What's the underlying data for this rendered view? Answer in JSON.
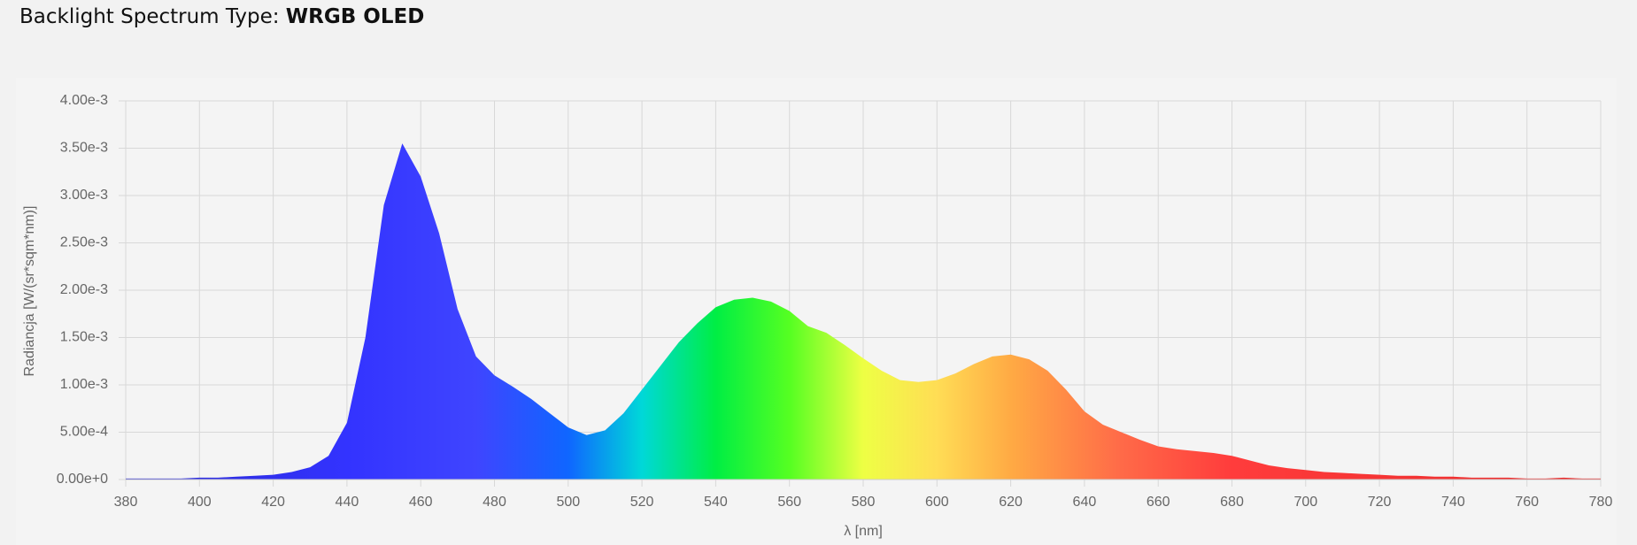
{
  "chart_data": {
    "type": "area",
    "title": "Backlight Spectrum Type:",
    "title_emphasis": "WRGB OLED",
    "x_label": "λ [nm]",
    "y_label": "Radiancja [W/(sr*sqm*nm)]",
    "x": [
      380,
      385,
      390,
      395,
      400,
      405,
      410,
      415,
      420,
      425,
      430,
      435,
      440,
      445,
      450,
      455,
      460,
      465,
      470,
      475,
      480,
      485,
      490,
      495,
      500,
      505,
      510,
      515,
      520,
      525,
      530,
      535,
      540,
      545,
      550,
      555,
      560,
      565,
      570,
      575,
      580,
      585,
      590,
      595,
      600,
      605,
      610,
      615,
      620,
      625,
      630,
      635,
      640,
      645,
      650,
      655,
      660,
      665,
      670,
      675,
      680,
      685,
      690,
      695,
      700,
      705,
      710,
      715,
      720,
      725,
      730,
      735,
      740,
      745,
      750,
      755,
      760,
      765,
      770,
      775,
      780
    ],
    "values": [
      1e-05,
      1e-05,
      1e-05,
      1e-05,
      2e-05,
      2e-05,
      3e-05,
      4e-05,
      5e-05,
      8e-05,
      0.00013,
      0.00025,
      0.0006,
      0.0015,
      0.0029,
      0.00355,
      0.0032,
      0.0026,
      0.0018,
      0.0013,
      0.0011,
      0.00098,
      0.00085,
      0.0007,
      0.00055,
      0.00047,
      0.00052,
      0.0007,
      0.00095,
      0.0012,
      0.00145,
      0.00165,
      0.00182,
      0.0019,
      0.00192,
      0.00188,
      0.00178,
      0.00162,
      0.00155,
      0.00142,
      0.00128,
      0.00115,
      0.00105,
      0.00103,
      0.00105,
      0.00112,
      0.00122,
      0.0013,
      0.00132,
      0.00127,
      0.00115,
      0.00095,
      0.00072,
      0.00058,
      0.0005,
      0.00042,
      0.00035,
      0.00032,
      0.0003,
      0.00028,
      0.00025,
      0.0002,
      0.00015,
      0.00012,
      0.0001,
      8e-05,
      7e-05,
      6e-05,
      5e-05,
      4e-05,
      4e-05,
      3e-05,
      3e-05,
      2e-05,
      2e-05,
      2e-05,
      1e-05,
      1e-05,
      2e-05,
      1e-05,
      1e-05
    ],
    "fill_stops": [
      {
        "x": 380,
        "color": "#2a2ad0"
      },
      {
        "x": 440,
        "color": "#3333ff"
      },
      {
        "x": 475,
        "color": "#3f45ff"
      },
      {
        "x": 500,
        "color": "#0f66ff"
      },
      {
        "x": 520,
        "color": "#00d8d8"
      },
      {
        "x": 540,
        "color": "#00ee44"
      },
      {
        "x": 560,
        "color": "#55ff22"
      },
      {
        "x": 580,
        "color": "#eeff44"
      },
      {
        "x": 600,
        "color": "#ffdd55"
      },
      {
        "x": 620,
        "color": "#ffaa44"
      },
      {
        "x": 650,
        "color": "#ff6a48"
      },
      {
        "x": 680,
        "color": "#ff3c3c"
      },
      {
        "x": 780,
        "color": "#e82a2a"
      }
    ],
    "xlim": [
      380,
      780
    ],
    "ylim": [
      0,
      0.004
    ],
    "xticks": [
      380,
      400,
      420,
      440,
      460,
      480,
      500,
      520,
      540,
      560,
      580,
      600,
      620,
      640,
      660,
      680,
      700,
      720,
      740,
      760,
      780
    ],
    "yticks": [
      {
        "value": 0,
        "label": "0.00e+0"
      },
      {
        "value": 0.0005,
        "label": "5.00e-4"
      },
      {
        "value": 0.001,
        "label": "1.00e-3"
      },
      {
        "value": 0.0015,
        "label": "1.50e-3"
      },
      {
        "value": 0.002,
        "label": "2.00e-3"
      },
      {
        "value": 0.0025,
        "label": "2.50e-3"
      },
      {
        "value": 0.003,
        "label": "3.00e-3"
      },
      {
        "value": 0.0035,
        "label": "3.50e-3"
      },
      {
        "value": 0.004,
        "label": "4.00e-3"
      }
    ],
    "grid": true
  }
}
